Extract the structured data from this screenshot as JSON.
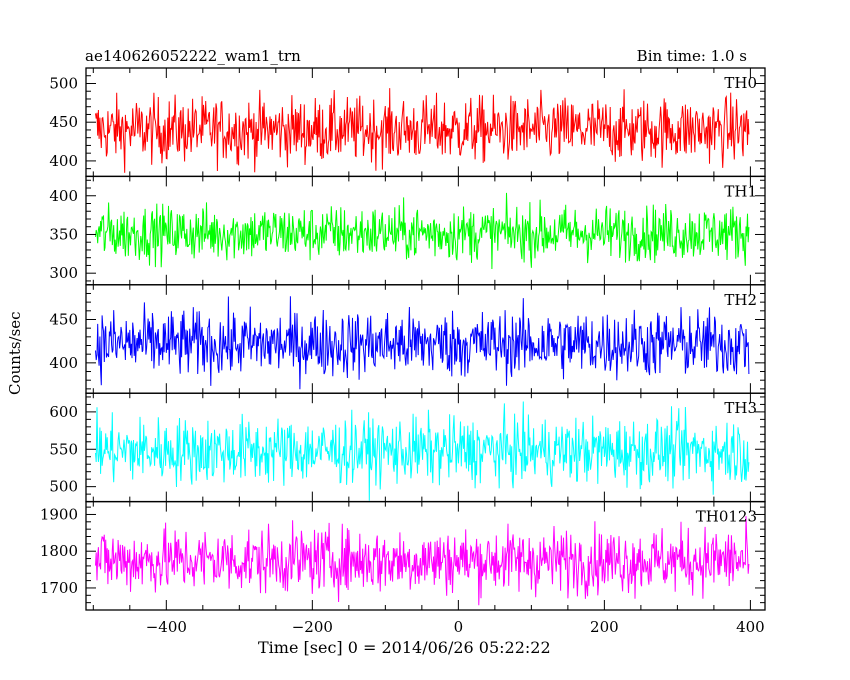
{
  "header": {
    "title": "ae140626052222_wam1_trn",
    "bin_time": "Bin time: 1.0 s"
  },
  "chart_data": {
    "type": "line",
    "xlabel": "Time [sec] 0 = 2014/06/26 05:22:22",
    "ylabel": "Counts/sec",
    "xlim": [
      -510,
      420
    ],
    "x_ticks": [
      -400,
      -200,
      0,
      200,
      400
    ],
    "x_range_data": [
      -497,
      398
    ],
    "panels": [
      {
        "name": "TH0",
        "color": "#ff0000",
        "ylim": [
          380,
          520
        ],
        "y_ticks": [
          400,
          450,
          500
        ],
        "mean": 440,
        "amplitude": 38
      },
      {
        "name": "TH1",
        "color": "#00ff00",
        "ylim": [
          285,
          425
        ],
        "y_ticks": [
          300,
          350,
          400
        ],
        "mean": 352,
        "amplitude": 32
      },
      {
        "name": "TH2",
        "color": "#0000ff",
        "ylim": [
          365,
          490
        ],
        "y_ticks": [
          400,
          450
        ],
        "mean": 422,
        "amplitude": 35
      },
      {
        "name": "TH3",
        "color": "#00ffff",
        "ylim": [
          480,
          625
        ],
        "y_ticks": [
          500,
          550,
          600
        ],
        "mean": 548,
        "amplitude": 40
      },
      {
        "name": "TH0123",
        "color": "#ff00ff",
        "ylim": [
          1640,
          1935
        ],
        "y_ticks": [
          1700,
          1800,
          1900
        ],
        "mean": 1775,
        "amplitude": 80
      }
    ]
  }
}
